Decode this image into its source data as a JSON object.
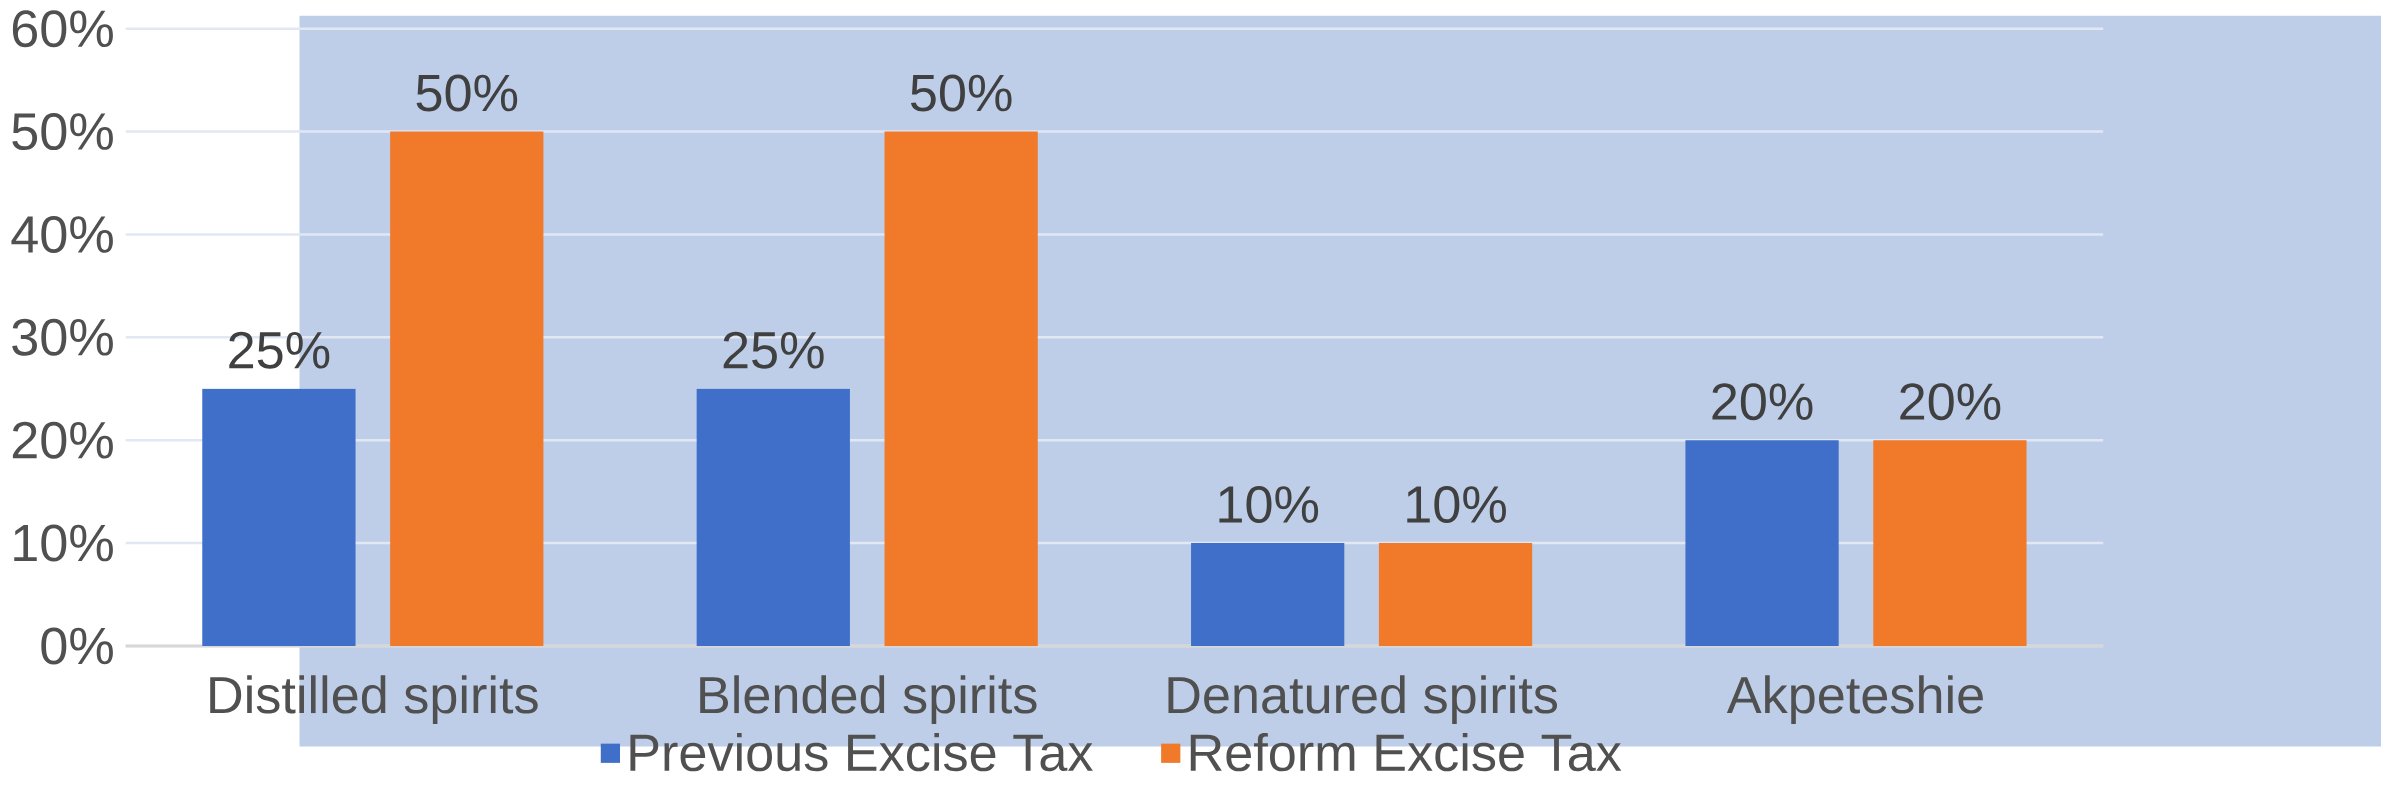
{
  "chart_data": {
    "type": "bar",
    "categories": [
      "Distilled spirits",
      "Blended spirits",
      "Denatured spirits",
      "Akpeteshie"
    ],
    "series": [
      {
        "name": "Previous Excise Tax",
        "color": "#3f6fc8",
        "values": [
          25,
          25,
          10,
          20
        ],
        "value_labels": [
          "25%",
          "25%",
          "10%",
          "20%"
        ]
      },
      {
        "name": "Reform Excise Tax",
        "color": "#f07a2a",
        "values": [
          50,
          50,
          10,
          20
        ],
        "value_labels": [
          "50%",
          "50%",
          "10%",
          "20%"
        ]
      }
    ],
    "ylim": [
      0,
      60
    ],
    "yticks": [
      {
        "value": 0,
        "label": "0%"
      },
      {
        "value": 10,
        "label": "10%"
      },
      {
        "value": 20,
        "label": "20%"
      },
      {
        "value": 30,
        "label": "30%"
      },
      {
        "value": 40,
        "label": "40%"
      },
      {
        "value": 50,
        "label": "50%"
      },
      {
        "value": 60,
        "label": "60%"
      }
    ],
    "grid": "y",
    "legend": "bottom"
  }
}
